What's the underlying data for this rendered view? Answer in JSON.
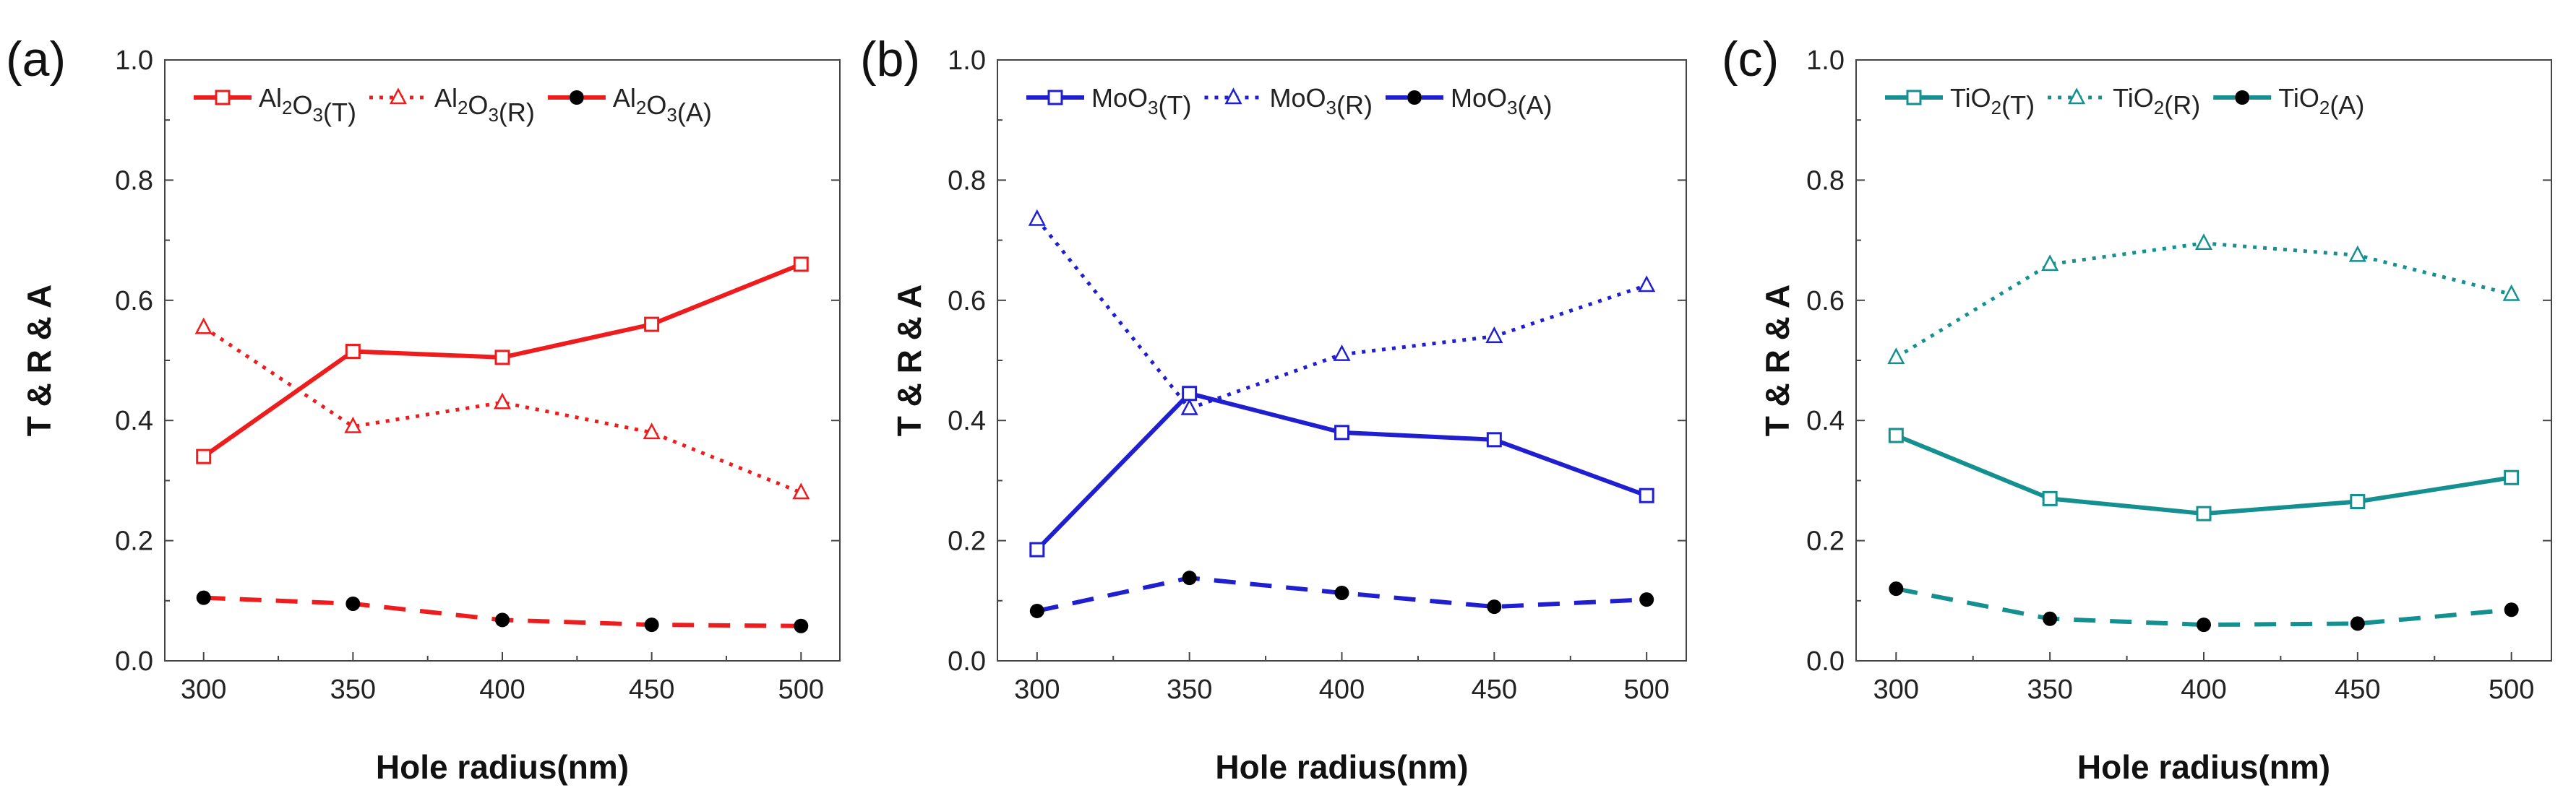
{
  "figure": {
    "panels": [
      {
        "label": "(a)",
        "materialParts": {
          "base": "Al",
          "sub1": "2",
          "mid": "O",
          "sub2": "3"
        },
        "color": "#ee1c1c",
        "legend": [
          "Al2O3(T)",
          "Al2O3(R)",
          "Al2O3(A)"
        ],
        "legendSuffix": [
          "(T)",
          "(R)",
          "(A)"
        ]
      },
      {
        "label": "(b)",
        "materialParts": {
          "base": "Mo",
          "sub1": "",
          "mid": "O",
          "sub2": "3"
        },
        "color": "#1f1fd1",
        "legend": [
          "MoO3(T)",
          "MoO3(R)",
          "MoO3(A)"
        ],
        "legendSuffix": [
          "(T)",
          "(R)",
          "(A)"
        ]
      },
      {
        "label": "(c)",
        "materialParts": {
          "base": "Ti",
          "sub1": "",
          "mid": "O",
          "sub2": "2"
        },
        "color": "#149090",
        "legend": [
          "TiO2(T)",
          "TiO2(R)",
          "TiO2(A)"
        ],
        "legendSuffix": [
          "(T)",
          "(R)",
          "(A)"
        ]
      }
    ]
  },
  "chart_data": [
    {
      "type": "line",
      "title": "(a)",
      "xlabel": "Hole radius(nm)",
      "ylabel": "T & R & A",
      "xlim": [
        287,
        513
      ],
      "ylim": [
        0,
        1
      ],
      "x": [
        300,
        350,
        400,
        450,
        500
      ],
      "xticks": [
        "300",
        "350",
        "400",
        "450",
        "500"
      ],
      "yticks": [
        "0.0",
        "0.2",
        "0.4",
        "0.6",
        "0.8",
        "1.0"
      ],
      "legend_position": "top",
      "series": [
        {
          "name": "Al2O3(T)",
          "values": [
            0.34,
            0.515,
            0.505,
            0.56,
            0.66
          ]
        },
        {
          "name": "Al2O3(R)",
          "values": [
            0.555,
            0.39,
            0.43,
            0.38,
            0.28
          ]
        },
        {
          "name": "Al2O3(A)",
          "values": [
            0.105,
            0.095,
            0.068,
            0.06,
            0.058
          ]
        }
      ]
    },
    {
      "type": "line",
      "title": "(b)",
      "xlabel": "Hole radius(nm)",
      "ylabel": "T & R & A",
      "xlim": [
        287,
        513
      ],
      "ylim": [
        0,
        1
      ],
      "x": [
        300,
        350,
        400,
        450,
        500
      ],
      "xticks": [
        "300",
        "350",
        "400",
        "450",
        "500"
      ],
      "yticks": [
        "0.0",
        "0.2",
        "0.4",
        "0.6",
        "0.8",
        "1.0"
      ],
      "legend_position": "top",
      "series": [
        {
          "name": "MoO3(T)",
          "values": [
            0.185,
            0.445,
            0.38,
            0.368,
            0.275
          ]
        },
        {
          "name": "MoO3(R)",
          "values": [
            0.735,
            0.42,
            0.51,
            0.54,
            0.625
          ]
        },
        {
          "name": "MoO3(A)",
          "values": [
            0.083,
            0.138,
            0.113,
            0.09,
            0.102
          ]
        }
      ]
    },
    {
      "type": "line",
      "title": "(c)",
      "xlabel": "Hole radius(nm)",
      "ylabel": "T & R & A",
      "xlim": [
        287,
        513
      ],
      "ylim": [
        0,
        1
      ],
      "x": [
        300,
        350,
        400,
        450,
        500
      ],
      "xticks": [
        "300",
        "350",
        "400",
        "450",
        "500"
      ],
      "yticks": [
        "0.0",
        "0.2",
        "0.4",
        "0.6",
        "0.8",
        "1.0"
      ],
      "legend_position": "top",
      "series": [
        {
          "name": "TiO2(T)",
          "values": [
            0.375,
            0.27,
            0.245,
            0.265,
            0.305
          ]
        },
        {
          "name": "TiO2(R)",
          "values": [
            0.505,
            0.66,
            0.695,
            0.675,
            0.61
          ]
        },
        {
          "name": "TiO2(A)",
          "values": [
            0.12,
            0.07,
            0.06,
            0.062,
            0.085
          ]
        }
      ]
    }
  ]
}
